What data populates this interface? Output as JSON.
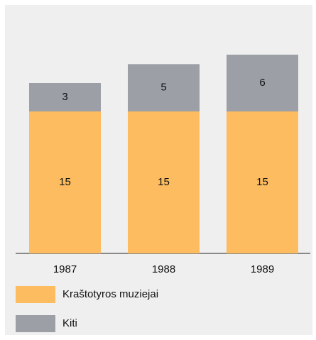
{
  "chart_data": {
    "type": "stacked_bar",
    "categories": [
      "1987",
      "1988",
      "1989"
    ],
    "series": [
      {
        "name": "Kraštotyros muziejai",
        "color": "#fdbc5f",
        "values": [
          15,
          15,
          15
        ]
      },
      {
        "name": "Kiti",
        "color": "#9c9fa6",
        "values": [
          3,
          5,
          6
        ]
      }
    ]
  }
}
